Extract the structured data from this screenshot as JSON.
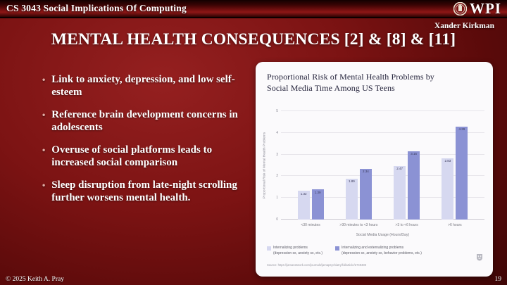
{
  "header": {
    "course": "CS 3043 Social Implications Of Computing",
    "logo_text": "WPI"
  },
  "slide": {
    "author": "Xander Kirkman",
    "title": "MENTAL HEALTH CONSEQUENCES [2] & [8] & [11]",
    "bullets": [
      "Link to anxiety, depression, and low self-esteem",
      "Reference brain development concerns in adolescents",
      "Overuse of social platforms leads to increased social comparison",
      "Sleep disruption from late-night scrolling further worsens mental health."
    ],
    "footer_left": "© 2025 Keith A. Pray",
    "page_number": "19"
  },
  "theme": {
    "slide_red": "#7c1313",
    "card_background": "#fbfafc",
    "bar_light": "#d6d8f0",
    "bar_dark": "#8b92d4"
  },
  "chart_data": {
    "type": "bar",
    "title": "Proportional Risk of Mental Health Problems by Social Media Time Among US Teens",
    "categories": [
      "<30 minutes",
      ">30 minutes to <3 hours",
      ">3 to <6 hours",
      ">6 hours"
    ],
    "series": [
      {
        "label": "Internalizing problems",
        "sublabel": "(depression sx, anxiety sx, etc.)",
        "color": "#d6d8f0",
        "values": [
          1.32,
          1.89,
          2.47,
          2.83
        ]
      },
      {
        "label": "Internalizing and externalizing problems",
        "sublabel": "(depression sx, anxiety sx, behavior problems, etc.)",
        "color": "#8b92d4",
        "values": [
          1.39,
          2.34,
          3.15,
          4.29
        ]
      }
    ],
    "xlabel": "Social Media Usage (Hours/Day)",
    "ylabel": "Proportional Risk of Mental Health Problems",
    "ylim": [
      0,
      5
    ],
    "yticks": [
      0,
      1,
      2,
      3,
      4,
      5
    ],
    "grid": true,
    "legend_position": "bottom",
    "source": "Source: https://jamanetwork.com/journals/jamapsychiatry/fullarticle/2749480"
  }
}
